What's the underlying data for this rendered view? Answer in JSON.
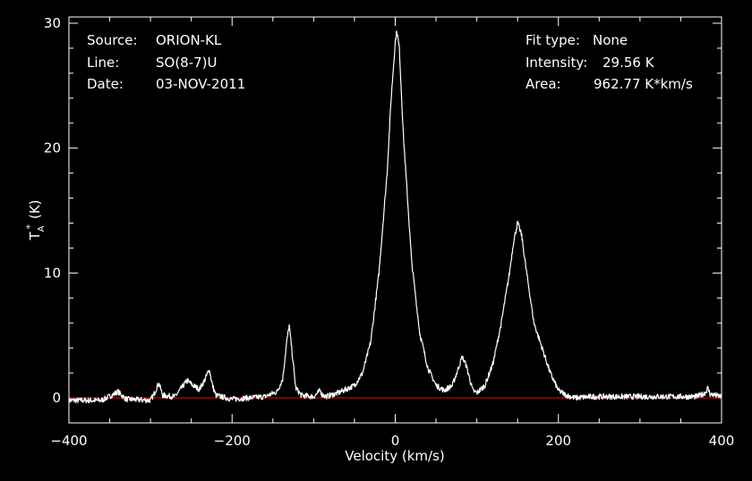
{
  "info": {
    "source_label": "Source:",
    "source": "ORION-KL",
    "line_label": "Line:",
    "line": "SO(8-7)U",
    "date_label": "Date:",
    "date": "03-NOV-2011",
    "fit_label": "Fit type:",
    "fit": "None",
    "intensity_label": "Intensity:",
    "intensity": "29.56 K",
    "area_label": "Area:",
    "area": "962.77 K*km/s"
  },
  "chart_data": {
    "type": "line",
    "xlabel": "Velocity (km/s)",
    "ylabel_main": "T",
    "ylabel_sub": "A",
    "ylabel_sup": "*",
    "ylabel_unit": "(K)",
    "xlim": [
      -400,
      400
    ],
    "ylim": [
      -2,
      30.5
    ],
    "x_ticks": [
      -400,
      -200,
      0,
      200,
      400
    ],
    "y_ticks": [
      0,
      10,
      20,
      30
    ],
    "grid": false,
    "baseline": {
      "y": 0,
      "color": "#ff0000"
    },
    "series": [
      {
        "color": "#ffffff",
        "x": [
          -400,
          -360,
          -345,
          -340,
          -330,
          -300,
          -295,
          -290,
          -285,
          -270,
          -262,
          -255,
          -248,
          -240,
          -233,
          -228,
          -224,
          -220,
          -200,
          -180,
          -160,
          -145,
          -138,
          -133,
          -130,
          -127,
          -122,
          -115,
          -100,
          -95,
          -92,
          -90,
          -85,
          -70,
          -50,
          -40,
          -30,
          -20,
          -10,
          -5,
          0,
          2,
          5,
          10,
          20,
          30,
          40,
          50,
          60,
          70,
          77,
          82,
          87,
          95,
          100,
          110,
          120,
          130,
          140,
          145,
          150,
          155,
          160,
          170,
          180,
          190,
          200,
          210,
          220,
          240,
          300,
          370,
          380,
          383,
          386,
          400
        ],
        "y": [
          -0.2,
          -0.2,
          0.3,
          0.5,
          -0.1,
          -0.2,
          0.4,
          1.2,
          0.2,
          0.1,
          0.8,
          1.4,
          1.0,
          0.7,
          1.5,
          2.3,
          1.0,
          0.2,
          -0.1,
          0.0,
          0.1,
          0.5,
          1.5,
          4.5,
          5.8,
          4.0,
          0.8,
          0.2,
          0.1,
          0.4,
          0.6,
          0.3,
          0.1,
          0.4,
          1.0,
          2.0,
          4.5,
          10.0,
          18.0,
          24.0,
          28.5,
          29.4,
          28.0,
          21.0,
          11.0,
          5.2,
          2.4,
          1.0,
          0.6,
          1.0,
          2.3,
          3.3,
          2.6,
          0.6,
          0.4,
          1.0,
          2.8,
          6.0,
          10.0,
          12.5,
          14.0,
          13.0,
          10.5,
          6.0,
          4.0,
          2.0,
          0.6,
          0.2,
          0.0,
          0.1,
          0.1,
          0.1,
          0.4,
          0.8,
          0.3,
          0.1
        ]
      }
    ]
  }
}
